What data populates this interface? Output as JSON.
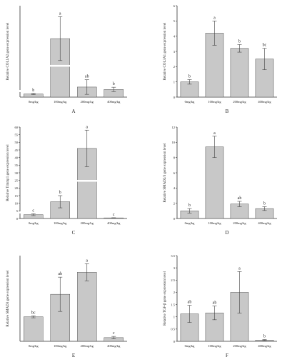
{
  "figure": {
    "background": "#ffffff",
    "bar_color": "#c8c8c8",
    "bar_edge": "#555555",
    "axis_color": "#333333"
  },
  "chart_data": [
    {
      "type": "bar",
      "panel_label": "A",
      "ylabel": "Relative COL1A2 gene expression level",
      "categories": [
        "0mg/kg",
        "100mg/kg",
        "200mg/kg",
        "400mg/kg"
      ],
      "values": [
        0.17,
        3.2,
        0.55,
        0.42
      ],
      "errors": [
        0.03,
        1.2,
        0.4,
        0.12
      ],
      "letters": [
        "b",
        "a",
        "ab",
        "b"
      ],
      "ylim": [
        0,
        5
      ],
      "axis_break": true
    },
    {
      "type": "bar",
      "panel_label": "B",
      "ylabel": "Relative COL3A1 gene expression level",
      "categories": [
        "0mg/kg",
        "100mg/kg",
        "200mg/kg",
        "400mg/kg"
      ],
      "values": [
        1.0,
        4.2,
        3.2,
        2.5
      ],
      "errors": [
        0.15,
        0.8,
        0.25,
        0.7
      ],
      "letters": [
        "b",
        "a",
        "b",
        "bc"
      ],
      "ylim": [
        0,
        6
      ],
      "yticks": [
        0,
        1,
        2,
        3,
        4,
        5,
        6
      ]
    },
    {
      "type": "bar",
      "panel_label": "C",
      "ylabel": "Relative Timmp1 gene expression level",
      "categories": [
        "0mg/kg",
        "100mg/kg",
        "200mg/kg",
        "400mg/kg"
      ],
      "values": [
        2.5,
        11.0,
        46.0,
        0.4
      ],
      "errors": [
        0.6,
        4.0,
        12.0,
        0.1
      ],
      "letters": [
        "c",
        "b",
        "a",
        "c"
      ],
      "ylim": [
        0,
        60
      ],
      "yticks": [
        0,
        5,
        10,
        15,
        20,
        25,
        30,
        35,
        40,
        45,
        50,
        55,
        60
      ],
      "axis_break": true
    },
    {
      "type": "bar",
      "panel_label": "D",
      "ylabel": "Relative SMAD2/3 gene expression level",
      "categories": [
        "0mg/kg",
        "100mg/kg",
        "200mg/kg",
        "400mg/kg"
      ],
      "values": [
        1.0,
        9.4,
        1.9,
        1.3
      ],
      "errors": [
        0.3,
        1.4,
        0.35,
        0.25
      ],
      "letters": [
        "b",
        "a",
        "ab",
        "b"
      ],
      "ylim": [
        0,
        12
      ],
      "yticks": [
        0,
        2,
        4,
        6,
        8,
        10,
        12
      ]
    },
    {
      "type": "bar",
      "panel_label": "E",
      "ylabel": "Relative SMAD3 gene expression level",
      "categories": [
        "0mg/kg",
        "100mg/kg",
        "200mg/kg",
        "400mg/kg"
      ],
      "values": [
        1.0,
        1.92,
        2.82,
        0.15
      ],
      "errors": [
        0.04,
        0.7,
        0.35,
        0.05
      ],
      "letters": [
        "bc",
        "ab",
        "a",
        "c"
      ],
      "ylim": [
        0,
        3.5
      ]
    },
    {
      "type": "bar",
      "panel_label": "F",
      "ylabel": "Relative TGF-β gene expression level",
      "categories": [
        "0mg/kg",
        "100mg/kg",
        "200mg/kg",
        "400mg/kg"
      ],
      "values": [
        1.12,
        1.16,
        2.0,
        0.05
      ],
      "errors": [
        0.35,
        0.28,
        0.85,
        0.02
      ],
      "letters": [
        "ab",
        "ab",
        "a",
        "b"
      ],
      "ylim": [
        0,
        3.5
      ],
      "yticks": [
        0,
        0.5,
        1.0,
        1.5,
        2.0,
        2.5,
        3.0,
        3.5
      ]
    }
  ]
}
